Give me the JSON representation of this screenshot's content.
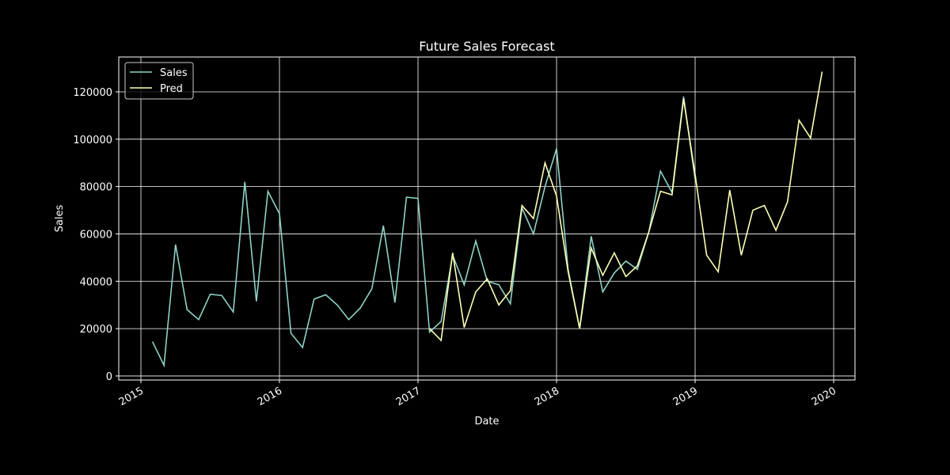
{
  "chart_data": {
    "type": "line",
    "title": "Future Sales Forecast",
    "x_label": "Date",
    "y_label": "Sales",
    "x": [
      2015.0833,
      2015.1667,
      2015.25,
      2015.3333,
      2015.4167,
      2015.5,
      2015.5833,
      2015.6667,
      2015.75,
      2015.8333,
      2015.9167,
      2016.0,
      2016.0833,
      2016.1667,
      2016.25,
      2016.3333,
      2016.4167,
      2016.5,
      2016.5833,
      2016.6667,
      2016.75,
      2016.8333,
      2016.9167,
      2017.0,
      2017.0833,
      2017.1667,
      2017.25,
      2017.3333,
      2017.4167,
      2017.5,
      2017.5833,
      2017.6667,
      2017.75,
      2017.8333,
      2017.9167,
      2018.0,
      2018.0833,
      2018.1667,
      2018.25,
      2018.3333,
      2018.4167,
      2018.5,
      2018.5833,
      2018.6667,
      2018.75,
      2018.8333,
      2018.9167,
      2019.0,
      2019.0833,
      2019.1667,
      2019.25,
      2019.3333,
      2019.4167,
      2019.5,
      2019.5833,
      2019.6667,
      2019.75,
      2019.8333,
      2019.9167
    ],
    "series": [
      {
        "name": "Sales",
        "color": "#8dd3c7",
        "values": [
          14500,
          4500,
          55500,
          28000,
          23800,
          34500,
          34000,
          27000,
          82000,
          31500,
          78000,
          68500,
          18000,
          12000,
          32500,
          34300,
          30000,
          23800,
          28700,
          36800,
          63500,
          31000,
          75500,
          75000,
          18500,
          23000,
          51000,
          38500,
          57000,
          40000,
          38500,
          30500,
          71000,
          60000,
          80000,
          96000,
          45000,
          20000,
          59000,
          35500,
          43500,
          48500,
          45000,
          61000,
          86500,
          77500,
          118000,
          83000,
          null,
          null,
          null,
          null,
          null,
          null,
          null,
          null,
          null,
          null,
          null
        ]
      },
      {
        "name": "Pred",
        "color": "#feffb3",
        "values": [
          null,
          null,
          null,
          null,
          null,
          null,
          null,
          null,
          null,
          null,
          null,
          null,
          null,
          null,
          null,
          null,
          null,
          null,
          null,
          null,
          null,
          null,
          null,
          null,
          20000,
          15000,
          52000,
          20500,
          35500,
          41000,
          30000,
          36000,
          72000,
          66500,
          90000,
          76000,
          44000,
          20000,
          54000,
          42500,
          52000,
          42000,
          46500,
          61000,
          78000,
          76500,
          117000,
          85000,
          51000,
          44000,
          78500,
          51000,
          70000,
          72000,
          61500,
          73500,
          108000,
          100500,
          128500
        ]
      }
    ],
    "xlim": [
      2014.84,
      2020.154
    ],
    "xticks": [
      2015,
      2016,
      2017,
      2018,
      2019,
      2020
    ],
    "ylim": [
      -1700,
      134700
    ],
    "yticks": [
      0,
      20000,
      40000,
      60000,
      80000,
      100000,
      120000
    ],
    "grid": true,
    "legend": "upper left"
  }
}
